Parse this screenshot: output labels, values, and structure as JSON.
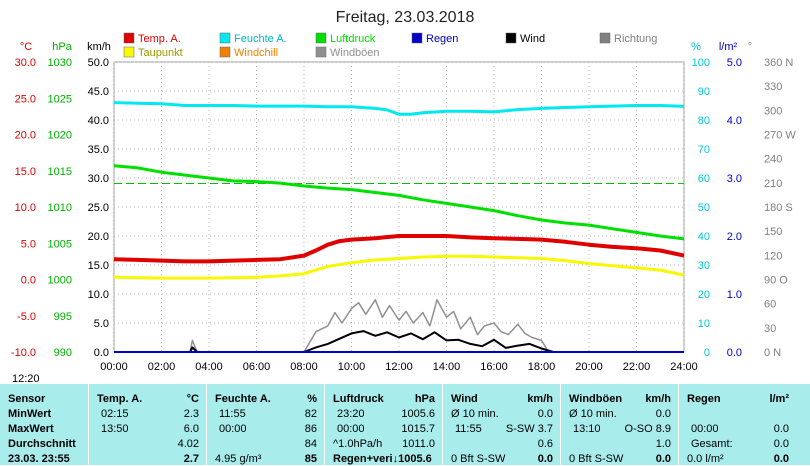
{
  "title": "Freitag, 23.03.2018",
  "legend": [
    {
      "label": "Temp. A.",
      "color": "#e00000"
    },
    {
      "label": "Feuchte A.",
      "color": "#00e8f0"
    },
    {
      "label": "Luftdruck",
      "color": "#00e000"
    },
    {
      "label": "Regen",
      "color": "#0000c8"
    },
    {
      "label": "Wind",
      "color": "#000000"
    },
    {
      "label": "Richtung",
      "color": "#808080"
    },
    {
      "label": "Taupunkt",
      "color": "#f8f800"
    },
    {
      "label": "Windchill",
      "color": "#f08000"
    },
    {
      "label": "Windböen",
      "color": "#909090"
    }
  ],
  "axis_units": {
    "temp": "°C",
    "pressure": "hPa",
    "wind": "km/h",
    "humidity": "%",
    "rain": "l/m²",
    "direction": "°"
  },
  "current_time": "12:20",
  "chart_data": {
    "type": "line",
    "title": "Freitag, 23.03.2018",
    "x_ticks": [
      "00:00",
      "02:00",
      "04:00",
      "06:00",
      "08:00",
      "10:00",
      "12:00",
      "14:00",
      "16:00",
      "18:00",
      "20:00",
      "22:00",
      "24:00"
    ],
    "xlim_hours": [
      0,
      24
    ],
    "axes": {
      "temp": {
        "label": "°C",
        "ylim": [
          -10,
          30
        ],
        "ticks": [
          "-10.0",
          "-5.0",
          "0.0",
          "5.0",
          "10.0",
          "15.0",
          "20.0",
          "25.0",
          "30.0"
        ]
      },
      "pressure": {
        "label": "hPa",
        "ylim": [
          990,
          1030
        ],
        "ticks": [
          "990",
          "995",
          "1000",
          "1005",
          "1010",
          "1015",
          "1020",
          "1025",
          "1030"
        ]
      },
      "wind": {
        "label": "km/h",
        "ylim": [
          0,
          50
        ],
        "ticks": [
          "0.0",
          "5.0",
          "10.0",
          "15.0",
          "20.0",
          "25.0",
          "30.0",
          "35.0",
          "40.0",
          "45.0",
          "50.0"
        ]
      },
      "humidity": {
        "label": "%",
        "ylim": [
          0,
          100
        ],
        "ticks": [
          "0",
          "10",
          "20",
          "30",
          "40",
          "50",
          "60",
          "70",
          "80",
          "90",
          "100"
        ]
      },
      "rain": {
        "label": "l/m²",
        "ylim": [
          0,
          5
        ],
        "ticks": [
          "0.0",
          "1.0",
          "2.0",
          "3.0",
          "4.0",
          "5.0"
        ]
      },
      "direction": {
        "label": "°",
        "ylim": [
          0,
          360
        ],
        "ticks": [
          "0 N",
          "30",
          "60",
          "90 O",
          "120",
          "150",
          "180 S",
          "210",
          "240",
          "270 W",
          "300",
          "330",
          "360 N"
        ]
      }
    },
    "reference_line_pressure": 1013.25,
    "series": [
      {
        "name": "Temp. A.",
        "axis": "temp",
        "color": "#e00000",
        "x": [
          0,
          1,
          2,
          3,
          4,
          5,
          6,
          7,
          8,
          8.5,
          9,
          9.5,
          10,
          11,
          12,
          13,
          14,
          15,
          16,
          17,
          18,
          19,
          20,
          21,
          22,
          23,
          24
        ],
        "y": [
          2.8,
          2.7,
          2.6,
          2.5,
          2.5,
          2.6,
          2.7,
          2.8,
          3.3,
          4.0,
          4.8,
          5.3,
          5.5,
          5.7,
          6.0,
          6.0,
          6.0,
          5.8,
          5.7,
          5.6,
          5.5,
          5.2,
          4.8,
          4.5,
          4.3,
          4.0,
          3.3
        ]
      },
      {
        "name": "Taupunkt",
        "axis": "temp",
        "color": "#f8f800",
        "x": [
          0,
          2,
          4,
          6,
          7,
          8,
          8.5,
          9,
          10,
          11,
          12,
          13,
          14,
          15,
          16,
          17,
          18,
          19,
          20,
          21,
          22,
          23,
          24
        ],
        "y": [
          0.3,
          0.2,
          0.2,
          0.3,
          0.5,
          0.8,
          1.3,
          1.8,
          2.3,
          2.7,
          2.9,
          3.1,
          3.2,
          3.2,
          3.1,
          3.0,
          2.9,
          2.6,
          2.2,
          1.9,
          1.6,
          1.3,
          0.6
        ]
      },
      {
        "name": "Feuchte A.",
        "axis": "humidity",
        "color": "#00e8f0",
        "x": [
          0,
          1,
          2,
          3,
          4,
          5,
          6,
          7,
          8,
          9,
          10,
          11,
          11.5,
          12,
          12.5,
          13,
          14,
          15,
          16,
          17,
          18,
          19,
          20,
          21,
          22,
          23,
          24
        ],
        "y": [
          86,
          85.8,
          85.6,
          85,
          85,
          85,
          84.8,
          84.8,
          84.8,
          84.6,
          84.6,
          84,
          83.5,
          82,
          82,
          82.5,
          83,
          83,
          82.8,
          83.6,
          84,
          84.3,
          84.6,
          84.8,
          85,
          85,
          84.7
        ]
      },
      {
        "name": "Luftdruck",
        "axis": "pressure",
        "color": "#00e000",
        "x": [
          0,
          1,
          2,
          3,
          4,
          5,
          6,
          7,
          8,
          9,
          10,
          11,
          12,
          13,
          14,
          15,
          16,
          17,
          18,
          19,
          20,
          21,
          22,
          23,
          24
        ],
        "y": [
          1015.7,
          1015.4,
          1014.8,
          1014.4,
          1014,
          1013.6,
          1013.5,
          1013.3,
          1012.9,
          1012.6,
          1012.4,
          1012,
          1011.6,
          1011,
          1010.5,
          1010,
          1009.5,
          1008.8,
          1008.2,
          1007.8,
          1007.5,
          1007,
          1006.5,
          1006,
          1005.6
        ]
      },
      {
        "name": "Wind",
        "axis": "wind",
        "color": "#000000",
        "x": [
          0,
          2,
          3.2,
          3.3,
          3.5,
          8,
          8.5,
          9,
          9.5,
          10,
          10.5,
          11,
          11.5,
          12,
          12.5,
          13,
          13.5,
          14,
          14.5,
          15,
          15.5,
          16,
          16.5,
          17,
          17.5,
          18,
          18.5,
          24
        ],
        "y": [
          0,
          0,
          0,
          0.8,
          0,
          0,
          0.8,
          1.4,
          2.3,
          3.2,
          3.6,
          2.8,
          3.4,
          2.5,
          3.2,
          2.2,
          3.4,
          2.0,
          2.1,
          1.4,
          1.0,
          2.1,
          0.7,
          1.1,
          1.4,
          0.6,
          0,
          0
        ]
      },
      {
        "name": "Windböen",
        "axis": "wind",
        "color": "#909090",
        "x": [
          0,
          3.2,
          3.3,
          3.5,
          8,
          8.5,
          9,
          9.3,
          9.6,
          10,
          10.3,
          10.6,
          11,
          11.3,
          11.6,
          12,
          12.3,
          12.6,
          13,
          13.3,
          13.6,
          14,
          14.3,
          14.6,
          15,
          15.3,
          15.6,
          16,
          16.3,
          16.6,
          17,
          17.3,
          17.6,
          18,
          18.3,
          24
        ],
        "y": [
          0,
          0,
          2.0,
          0,
          0,
          3.5,
          4.5,
          6.8,
          5.0,
          7.5,
          8.5,
          6.5,
          9.0,
          6.0,
          8.0,
          5.5,
          7.0,
          5.0,
          6.8,
          4.5,
          9.0,
          6.0,
          7.0,
          4.0,
          6.0,
          3.0,
          4.5,
          5.0,
          3.5,
          3.0,
          4.8,
          3.2,
          2.5,
          2.0,
          0,
          0
        ]
      },
      {
        "name": "Regen",
        "axis": "rain",
        "color": "#0000c8",
        "x": [
          0,
          24
        ],
        "y": [
          0,
          0
        ]
      }
    ]
  },
  "stats": {
    "sensor": {
      "header": "Sensor",
      "rows": [
        "MinWert",
        "MaxWert",
        "Durchschnitt",
        "23.03. 23:55"
      ]
    },
    "temp": {
      "header": "Temp. A.",
      "unit": "°C",
      "rows": [
        [
          "02:15",
          "2.3"
        ],
        [
          "13:50",
          "6.0"
        ],
        [
          "",
          "4.02"
        ],
        [
          "",
          "2.7"
        ]
      ]
    },
    "humidity": {
      "header": "Feuchte A.",
      "unit": "%",
      "rows": [
        [
          "11:55",
          "82"
        ],
        [
          "00:00",
          "86"
        ],
        [
          "",
          "84"
        ],
        [
          "4.95 g/m³",
          "85"
        ]
      ]
    },
    "pressure": {
      "header": "Luftdruck",
      "unit": "hPa",
      "rows": [
        [
          "23:20",
          "1005.6"
        ],
        [
          "00:00",
          "1015.7"
        ],
        [
          "^1.0hPa/h",
          "1011.0"
        ],
        [
          "Regen+veri↓1005.6",
          ""
        ]
      ]
    },
    "wind": {
      "header": "Wind",
      "unit": "km/h",
      "rows": [
        [
          "Ø 10 min.",
          "",
          "0.0"
        ],
        [
          "11:55",
          "S-SW 3.7",
          ""
        ],
        [
          "",
          "",
          "0.6"
        ],
        [
          "0 Bft S-SW",
          "",
          "0.0"
        ]
      ]
    },
    "gust": {
      "header": "Windböen",
      "unit": "km/h",
      "rows": [
        [
          "Ø 10 min.",
          "",
          "0.0"
        ],
        [
          "13:10",
          "O-SO 8.9",
          ""
        ],
        [
          "",
          "",
          "1.0"
        ],
        [
          "0 Bft S-SW",
          "",
          "0.0"
        ]
      ]
    },
    "rain": {
      "header": "Regen",
      "unit": "l/m²",
      "rows": [
        [
          "",
          "",
          ""
        ],
        [
          "00:00",
          "",
          "0.0"
        ],
        [
          "Gesamt:",
          "",
          "0.0"
        ],
        [
          "0.0 l/m²",
          "",
          "0.0"
        ]
      ]
    }
  }
}
